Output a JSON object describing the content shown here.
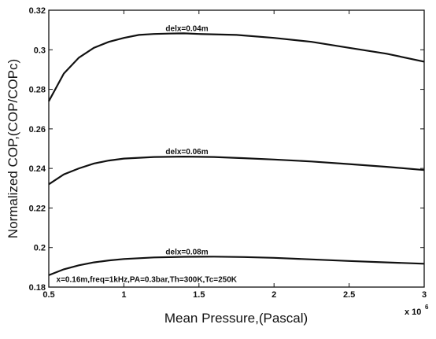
{
  "chart_data": {
    "type": "line",
    "title": "",
    "xlabel": "Mean Pressure,(Pascal)",
    "ylabel": "Normalized COP,(COP/COPc)",
    "x_multiplier_label": "x 10",
    "x_multiplier_exponent": "6",
    "xlim": [
      0.5,
      3
    ],
    "ylim": [
      0.18,
      0.32
    ],
    "xticks": [
      "0.5",
      "1",
      "1.5",
      "2",
      "2.5",
      "3"
    ],
    "yticks": [
      "0.18",
      "0.2",
      "0.22",
      "0.24",
      "0.26",
      "0.28",
      "0.3",
      "0.32"
    ],
    "grid": false,
    "series": [
      {
        "name": "delx=0.04m",
        "x": [
          0.5,
          0.6,
          0.7,
          0.8,
          0.9,
          1.0,
          1.1,
          1.2,
          1.3,
          1.4,
          1.5,
          1.75,
          2.0,
          2.25,
          2.5,
          2.75,
          3.0
        ],
        "y": [
          0.274,
          0.288,
          0.296,
          0.301,
          0.304,
          0.306,
          0.3075,
          0.308,
          0.3082,
          0.3083,
          0.308,
          0.3075,
          0.306,
          0.304,
          0.301,
          0.298,
          0.294
        ]
      },
      {
        "name": "delx=0.06m",
        "x": [
          0.5,
          0.6,
          0.7,
          0.8,
          0.9,
          1.0,
          1.2,
          1.4,
          1.6,
          1.8,
          2.0,
          2.25,
          2.5,
          2.75,
          3.0
        ],
        "y": [
          0.232,
          0.237,
          0.24,
          0.2425,
          0.244,
          0.245,
          0.2458,
          0.246,
          0.2458,
          0.2452,
          0.2445,
          0.2435,
          0.2422,
          0.2408,
          0.2392
        ]
      },
      {
        "name": "delx=0.08m",
        "x": [
          0.5,
          0.6,
          0.7,
          0.8,
          0.9,
          1.0,
          1.2,
          1.4,
          1.6,
          1.8,
          2.0,
          2.25,
          2.5,
          2.75,
          3.0
        ],
        "y": [
          0.186,
          0.189,
          0.191,
          0.1925,
          0.1935,
          0.1942,
          0.195,
          0.1953,
          0.1954,
          0.1952,
          0.1948,
          0.194,
          0.1932,
          0.1925,
          0.1918
        ]
      }
    ],
    "series_labels": [
      {
        "text": "delx=0.04m",
        "at": [
          1.42,
          0.3095
        ]
      },
      {
        "text": "delx=0.06m",
        "at": [
          1.42,
          0.2472
        ]
      },
      {
        "text": "delx=0.08m",
        "at": [
          1.42,
          0.1965
        ]
      }
    ],
    "annotation": {
      "text": "x=0.16m,freq=1kHz,PA=0.3bar,Th=300K,Tc=250K",
      "at": [
        0.55,
        0.1825
      ]
    }
  }
}
